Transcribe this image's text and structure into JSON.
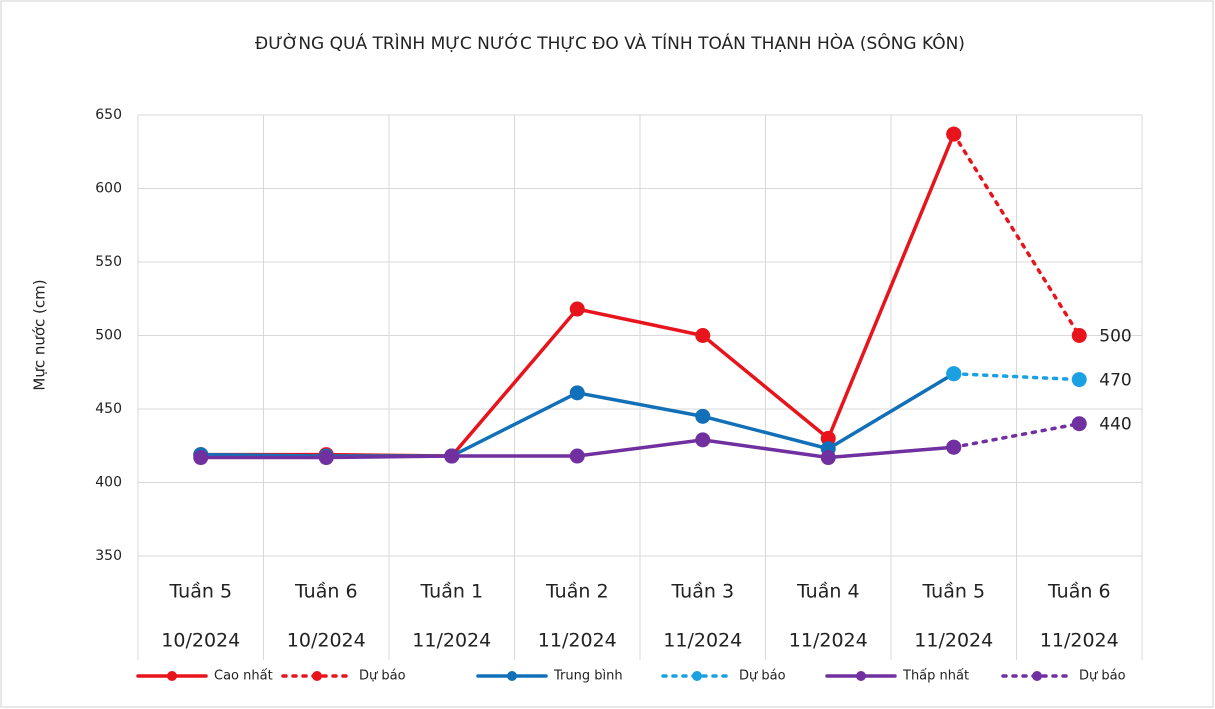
{
  "chart_data": {
    "type": "line",
    "title": "ĐƯỜNG QUÁ TRÌNH MỰC NƯỚC THỰC ĐO VÀ TÍNH TOÁN THẠNH HÒA (SÔNG KÔN)",
    "y_label": "Mực nước (cm)",
    "categories": [
      [
        "Tuần 5",
        "10/2024"
      ],
      [
        "Tuần 6",
        "10/2024"
      ],
      [
        "Tuần 1",
        "11/2024"
      ],
      [
        "Tuần 2",
        "11/2024"
      ],
      [
        "Tuần 3",
        "11/2024"
      ],
      [
        "Tuần 4",
        "11/2024"
      ],
      [
        "Tuần 5",
        "11/2024"
      ],
      [
        "Tuần 6",
        "11/2024"
      ]
    ],
    "ylim": [
      350,
      650
    ],
    "yticks": [
      350,
      400,
      450,
      500,
      550,
      600,
      650
    ],
    "grid": true,
    "legend": "bottom",
    "series": [
      {
        "name": "Cao nhất",
        "color": "#e8141c",
        "style": "solid",
        "values": [
          419,
          419,
          418,
          518,
          500,
          430,
          637,
          null
        ]
      },
      {
        "name": "Dự báo",
        "color": "#e8141c",
        "style": "dotted",
        "data_labels": true,
        "values": [
          null,
          null,
          null,
          null,
          null,
          null,
          637,
          500
        ]
      },
      {
        "name": "Trung bình",
        "color": "#1170b8",
        "style": "solid",
        "values": [
          419,
          418,
          418,
          461,
          445,
          423,
          474,
          null
        ]
      },
      {
        "name": "Dự báo",
        "color": "#1ba1e2",
        "style": "dotted",
        "data_labels": true,
        "values": [
          null,
          null,
          null,
          null,
          null,
          null,
          474,
          470
        ]
      },
      {
        "name": "Thấp nhất",
        "color": "#7030a0",
        "style": "solid",
        "values": [
          417,
          417,
          418,
          418,
          429,
          417,
          424,
          null
        ]
      },
      {
        "name": "Dự báo",
        "color": "#7030a0",
        "style": "dotted",
        "data_labels": true,
        "values": [
          null,
          null,
          null,
          null,
          null,
          null,
          424,
          440
        ]
      }
    ]
  }
}
